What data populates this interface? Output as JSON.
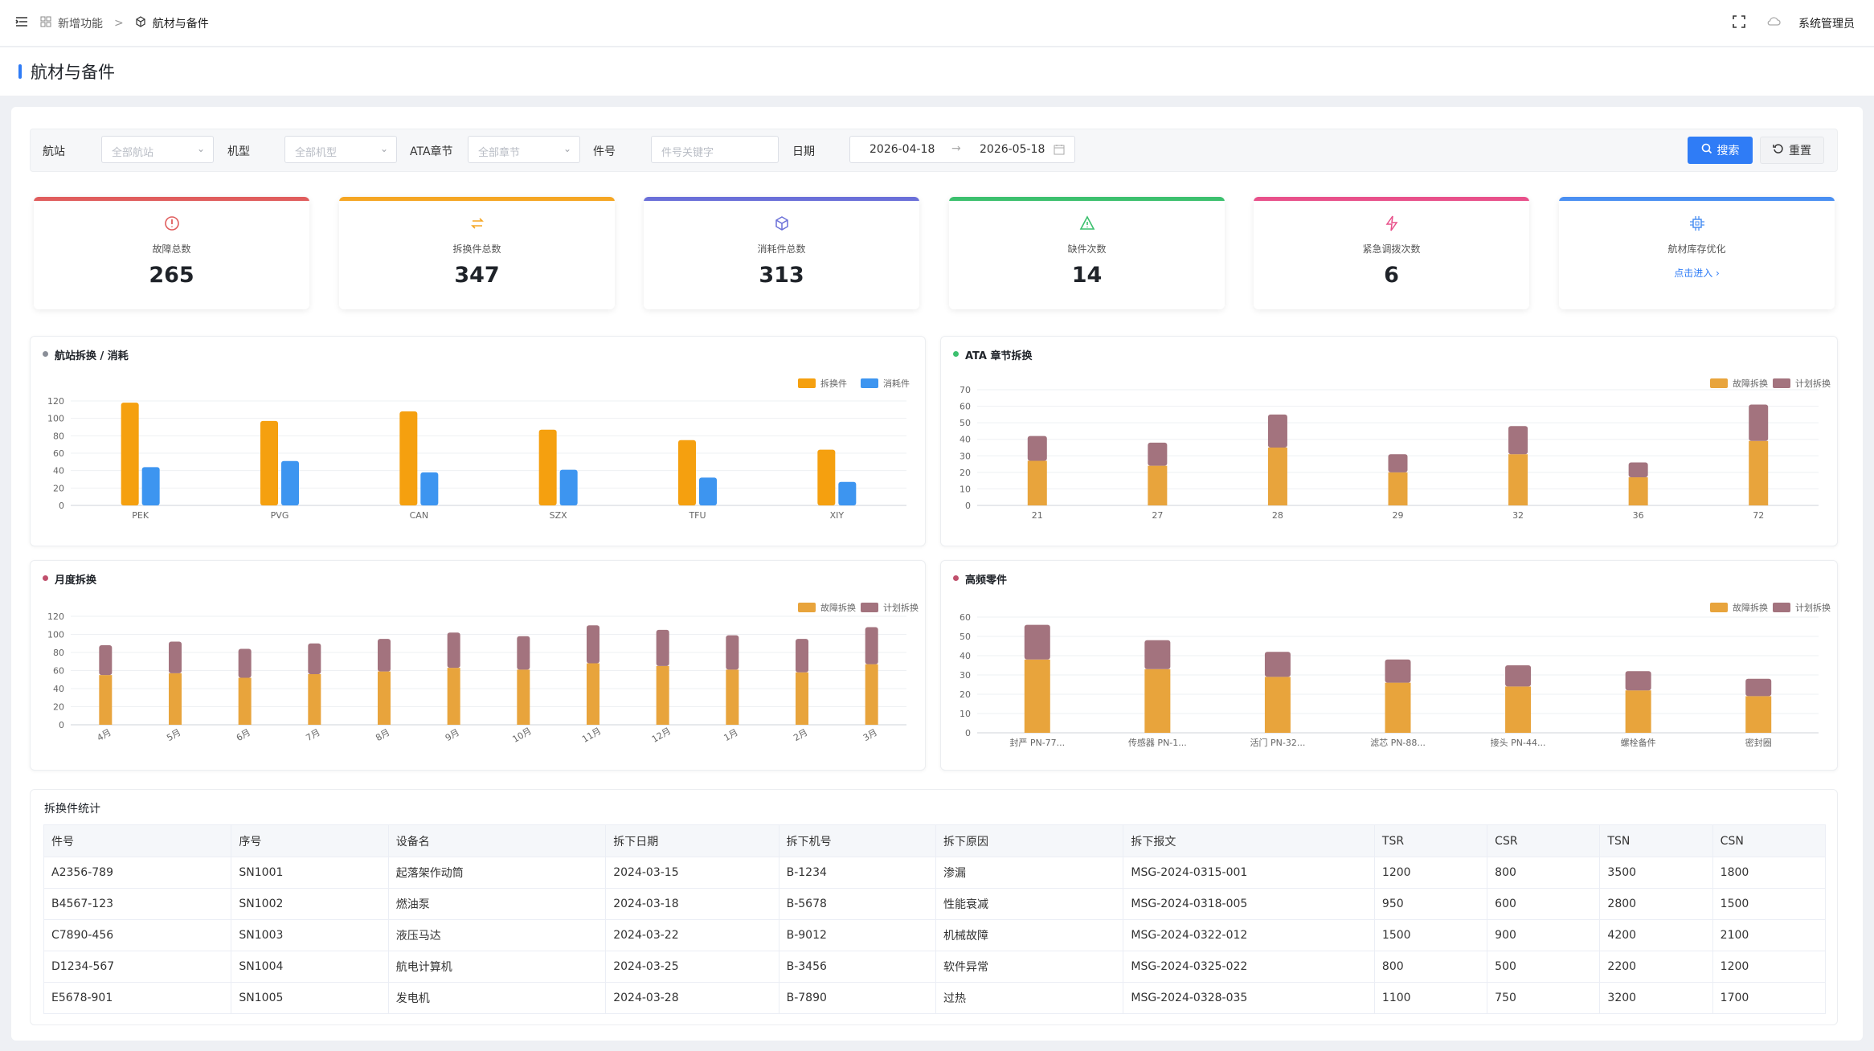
{
  "topbar": {
    "breadcrumb_parent": "新增功能",
    "breadcrumb_sep": ">",
    "breadcrumb_current": "航材与备件",
    "user": "系统管理员"
  },
  "page": {
    "title": "航材与备件"
  },
  "filters": {
    "station_label": "航站",
    "station_placeholder": "全部航站",
    "model_label": "机型",
    "model_placeholder": "全部机型",
    "ata_label": "ATA章节",
    "ata_placeholder": "全部章节",
    "part_label": "件号",
    "part_placeholder": "件号关键字",
    "date_label": "日期",
    "date_start": "2026-04-18",
    "date_end": "2026-05-18",
    "search_label": "搜索",
    "reset_label": "重置"
  },
  "stats": [
    {
      "label": "故障总数",
      "value": "265",
      "color": "#e05d5d",
      "icon": "alert-circle-icon"
    },
    {
      "label": "拆换件总数",
      "value": "347",
      "color": "#f5a623",
      "icon": "swap-icon"
    },
    {
      "label": "消耗件总数",
      "value": "313",
      "color": "#6a6fd8",
      "icon": "box-icon"
    },
    {
      "label": "缺件次数",
      "value": "14",
      "color": "#3cc06e",
      "icon": "warning-icon"
    },
    {
      "label": "紧急调拨次数",
      "value": "6",
      "color": "#e8508a",
      "icon": "lightning-icon"
    },
    {
      "label": "航材库存优化",
      "link": "点击进入 ›",
      "color": "#4a8ff2",
      "icon": "chip-icon"
    }
  ],
  "charts": {
    "station": {
      "title": "航站拆换 / 消耗",
      "dot_color": "#8a8f98",
      "legend": [
        "拆换件",
        "消耗件"
      ],
      "colors": [
        "#f5a00f",
        "#3d95f0"
      ],
      "chart_data": {
        "type": "bar",
        "categories": [
          "PEK",
          "PVG",
          "CAN",
          "SZX",
          "TFU",
          "XIY"
        ],
        "series": [
          {
            "name": "拆换件",
            "values": [
              118,
              97,
              108,
              87,
              75,
              64
            ]
          },
          {
            "name": "消耗件",
            "values": [
              44,
              51,
              38,
              41,
              32,
              27
            ]
          }
        ],
        "ylim": [
          0,
          120
        ],
        "yticks": [
          "0",
          "20",
          "40",
          "60",
          "80",
          "100",
          "120"
        ]
      }
    },
    "ata": {
      "title": "ATA 章节拆换",
      "dot_color": "#3cc06e",
      "legend": [
        "故障拆换",
        "计划拆换"
      ],
      "colors": [
        "#e8a43c",
        "#a3737e"
      ],
      "chart_data": {
        "type": "bar-stacked",
        "categories": [
          "21",
          "27",
          "28",
          "29",
          "32",
          "36",
          "72"
        ],
        "series": [
          {
            "name": "故障拆换",
            "values": [
              27,
              24,
              35,
              20,
              31,
              17,
              39
            ]
          },
          {
            "name": "计划拆换",
            "values": [
              15,
              14,
              20,
              11,
              17,
              9,
              22
            ]
          }
        ],
        "ylim": [
          0,
          70
        ],
        "yticks": [
          "0",
          "10",
          "20",
          "30",
          "40",
          "50",
          "60",
          "70"
        ]
      }
    },
    "monthly": {
      "title": "月度拆换",
      "dot_color": "#c0506c",
      "legend": [
        "故障拆换",
        "计划拆换"
      ],
      "colors": [
        "#e8a43c",
        "#a3737e"
      ],
      "chart_data": {
        "type": "bar-stacked",
        "categories": [
          "4月",
          "5月",
          "6月",
          "7月",
          "8月",
          "9月",
          "10月",
          "11月",
          "12月",
          "1月",
          "2月",
          "3月"
        ],
        "series": [
          {
            "name": "故障拆换",
            "values": [
              55,
              57,
              52,
              56,
              59,
              63,
              61,
              68,
              65,
              61,
              58,
              67
            ]
          },
          {
            "name": "计划拆换",
            "values": [
              33,
              35,
              32,
              34,
              36,
              39,
              37,
              42,
              40,
              38,
              37,
              41
            ]
          }
        ],
        "ylim": [
          0,
          120
        ],
        "yticks": [
          "0",
          "20",
          "40",
          "60",
          "80",
          "100",
          "120"
        ]
      }
    },
    "parts": {
      "title": "高频零件",
      "dot_color": "#c0506c",
      "legend": [
        "故障拆换",
        "计划拆换"
      ],
      "colors": [
        "#e8a43c",
        "#a3737e"
      ],
      "chart_data": {
        "type": "bar-stacked",
        "categories": [
          "封严 PN-77...",
          "传感器 PN-1...",
          "活门 PN-32...",
          "滤芯 PN-88...",
          "接头 PN-44...",
          "螺栓备件",
          "密封圈"
        ],
        "series": [
          {
            "name": "故障拆换",
            "values": [
              38,
              33,
              29,
              26,
              24,
              22,
              19
            ]
          },
          {
            "name": "计划拆换",
            "values": [
              18,
              15,
              13,
              12,
              11,
              10,
              9
            ]
          }
        ],
        "ylim": [
          0,
          60
        ],
        "yticks": [
          "0",
          "10",
          "20",
          "30",
          "40",
          "50",
          "60"
        ]
      }
    }
  },
  "table": {
    "title": "拆换件统计",
    "columns": [
      "件号",
      "序号",
      "设备名",
      "拆下日期",
      "拆下机号",
      "拆下原因",
      "拆下报文",
      "TSR",
      "CSR",
      "TSN",
      "CSN"
    ],
    "rows": [
      [
        "A2356-789",
        "SN1001",
        "起落架作动筒",
        "2024-03-15",
        "B-1234",
        "渗漏",
        "MSG-2024-0315-001",
        "1200",
        "800",
        "3500",
        "1800"
      ],
      [
        "B4567-123",
        "SN1002",
        "燃油泵",
        "2024-03-18",
        "B-5678",
        "性能衰减",
        "MSG-2024-0318-005",
        "950",
        "600",
        "2800",
        "1500"
      ],
      [
        "C7890-456",
        "SN1003",
        "液压马达",
        "2024-03-22",
        "B-9012",
        "机械故障",
        "MSG-2024-0322-012",
        "1500",
        "900",
        "4200",
        "2100"
      ],
      [
        "D1234-567",
        "SN1004",
        "航电计算机",
        "2024-03-25",
        "B-3456",
        "软件异常",
        "MSG-2024-0325-022",
        "800",
        "500",
        "2200",
        "1200"
      ],
      [
        "E5678-901",
        "SN1005",
        "发电机",
        "2024-03-28",
        "B-7890",
        "过热",
        "MSG-2024-0328-035",
        "1100",
        "750",
        "3200",
        "1700"
      ]
    ]
  }
}
